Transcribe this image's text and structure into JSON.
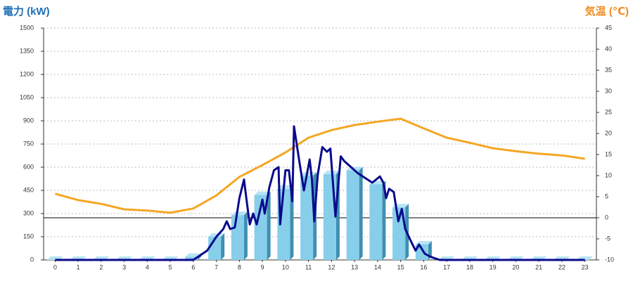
{
  "chart_data": {
    "type": "bar",
    "y_label": "電力 (kW)",
    "y2_label": "気温 (℃)",
    "categories": [
      "0",
      "1",
      "2",
      "3",
      "4",
      "5",
      "6",
      "7",
      "8",
      "9",
      "10",
      "11",
      "12",
      "13",
      "14",
      "15",
      "16",
      "17",
      "18",
      "19",
      "20",
      "21",
      "22",
      "23"
    ],
    "ylim": [
      0,
      1500
    ],
    "yticks": [
      0,
      150,
      300,
      450,
      600,
      750,
      900,
      1050,
      1200,
      1350,
      1500
    ],
    "y2lim": [
      -10,
      45
    ],
    "y2ticks": [
      -10,
      -5,
      0,
      5,
      10,
      15,
      20,
      25,
      30,
      35,
      40,
      45
    ],
    "y2_refline": 0,
    "grid": true,
    "series": [
      {
        "type": "bar",
        "color": "#87ceeb",
        "values": [
          0,
          0,
          0,
          0,
          0,
          0,
          20,
          150,
          290,
          420,
          460,
          545,
          555,
          580,
          490,
          340,
          100,
          0,
          0,
          0,
          0,
          0,
          0,
          0
        ]
      },
      {
        "type": "line",
        "axis": "y2",
        "color": "#f5a623",
        "values": [
          5.7,
          4.2,
          3.3,
          2,
          1.7,
          1.2,
          2.2,
          5.3,
          9.7,
          12.5,
          15.5,
          19,
          20.8,
          22,
          22.8,
          23.5,
          21.2,
          19,
          17.8,
          16.5,
          15.8,
          15.2,
          14.8,
          14
        ]
      },
      {
        "type": "line",
        "color": "#0a0a8c",
        "x": [
          0,
          6,
          6.3,
          6.6,
          7,
          7.3,
          7.45,
          7.6,
          7.8,
          8,
          8.2,
          8.3,
          8.45,
          8.6,
          8.75,
          9,
          9.1,
          9.3,
          9.5,
          9.7,
          9.77,
          10,
          10.15,
          10.3,
          10.37,
          10.6,
          10.8,
          11.05,
          11.15,
          11.25,
          11.4,
          11.6,
          11.8,
          11.95,
          12.17,
          12.4,
          12.55,
          12.85,
          13.15,
          13.77,
          14.1,
          14.25,
          14.37,
          14.5,
          14.7,
          14.9,
          15.05,
          15.2,
          15.45,
          15.65,
          15.8,
          16.05,
          16.3,
          16.7,
          23
        ],
        "values": [
          0,
          0,
          30,
          60,
          150,
          200,
          250,
          200,
          210,
          400,
          520,
          400,
          230,
          300,
          230,
          390,
          300,
          470,
          580,
          600,
          230,
          580,
          580,
          380,
          865,
          640,
          450,
          650,
          520,
          250,
          550,
          730,
          700,
          720,
          280,
          670,
          640,
          600,
          560,
          500,
          540,
          500,
          400,
          460,
          440,
          250,
          330,
          200,
          120,
          60,
          100,
          40,
          20,
          0,
          0
        ]
      }
    ]
  }
}
